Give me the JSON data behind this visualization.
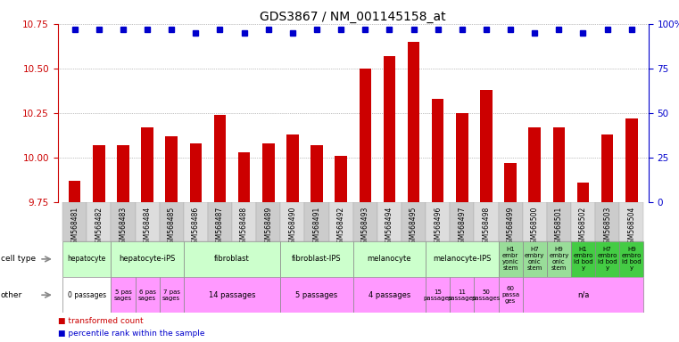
{
  "title": "GDS3867 / NM_001145158_at",
  "samples": [
    "GSM568481",
    "GSM568482",
    "GSM568483",
    "GSM568484",
    "GSM568485",
    "GSM568486",
    "GSM568487",
    "GSM568488",
    "GSM568489",
    "GSM568490",
    "GSM568491",
    "GSM568492",
    "GSM568493",
    "GSM568494",
    "GSM568495",
    "GSM568496",
    "GSM568497",
    "GSM568498",
    "GSM568499",
    "GSM568500",
    "GSM568501",
    "GSM568502",
    "GSM568503",
    "GSM568504"
  ],
  "transformed_count": [
    9.87,
    10.07,
    10.07,
    10.17,
    10.12,
    10.08,
    10.24,
    10.03,
    10.08,
    10.13,
    10.07,
    10.01,
    10.5,
    10.57,
    10.65,
    10.33,
    10.25,
    10.38,
    9.97,
    10.17,
    10.17,
    9.86,
    10.13,
    10.22
  ],
  "percentile": [
    97,
    97,
    97,
    97,
    97,
    95,
    97,
    95,
    97,
    95,
    97,
    97,
    97,
    97,
    97,
    97,
    97,
    97,
    97,
    95,
    97,
    95,
    97,
    97
  ],
  "ylim_left": [
    9.75,
    10.75
  ],
  "yticks_left": [
    9.75,
    10.0,
    10.25,
    10.5,
    10.75
  ],
  "ylim_right": [
    0,
    100
  ],
  "yticks_right": [
    0,
    25,
    50,
    75,
    100
  ],
  "bar_color": "#cc0000",
  "dot_color": "#0000cc",
  "grid_color": "#888888",
  "title_fontsize": 10,
  "bar_width": 0.5,
  "cell_type_groups": [
    {
      "label": "hepatocyte",
      "start": 0,
      "end": 2,
      "color": "#ccffcc"
    },
    {
      "label": "hepatocyte-iPS",
      "start": 2,
      "end": 5,
      "color": "#ccffcc"
    },
    {
      "label": "fibroblast",
      "start": 5,
      "end": 9,
      "color": "#ccffcc"
    },
    {
      "label": "fibroblast-IPS",
      "start": 9,
      "end": 12,
      "color": "#ccffcc"
    },
    {
      "label": "melanocyte",
      "start": 12,
      "end": 15,
      "color": "#ccffcc"
    },
    {
      "label": "melanocyte-IPS",
      "start": 15,
      "end": 18,
      "color": "#ccffcc"
    },
    {
      "label": "H1\nembr\nyonic\nstem",
      "start": 18,
      "end": 19,
      "color": "#99dd99"
    },
    {
      "label": "H7\nembry\nonic\nstem",
      "start": 19,
      "end": 20,
      "color": "#99dd99"
    },
    {
      "label": "H9\nembry\nonic\nstem",
      "start": 20,
      "end": 21,
      "color": "#99dd99"
    },
    {
      "label": "H1\nembro\nid bod\ny",
      "start": 21,
      "end": 22,
      "color": "#44cc44"
    },
    {
      "label": "H7\nembro\nid bod\ny",
      "start": 22,
      "end": 23,
      "color": "#44cc44"
    },
    {
      "label": "H9\nembro\nid bod\ny",
      "start": 23,
      "end": 24,
      "color": "#44cc44"
    }
  ],
  "other_groups": [
    {
      "label": "0 passages",
      "start": 0,
      "end": 2,
      "color": "#ffffff"
    },
    {
      "label": "5 pas\nsages",
      "start": 2,
      "end": 3,
      "color": "#ff99ff"
    },
    {
      "label": "6 pas\nsages",
      "start": 3,
      "end": 4,
      "color": "#ff99ff"
    },
    {
      "label": "7 pas\nsages",
      "start": 4,
      "end": 5,
      "color": "#ff99ff"
    },
    {
      "label": "14 passages",
      "start": 5,
      "end": 9,
      "color": "#ff99ff"
    },
    {
      "label": "5 passages",
      "start": 9,
      "end": 12,
      "color": "#ff99ff"
    },
    {
      "label": "4 passages",
      "start": 12,
      "end": 15,
      "color": "#ff99ff"
    },
    {
      "label": "15\npassages",
      "start": 15,
      "end": 16,
      "color": "#ff99ff"
    },
    {
      "label": "11\npassages",
      "start": 16,
      "end": 17,
      "color": "#ff99ff"
    },
    {
      "label": "50\npassages",
      "start": 17,
      "end": 18,
      "color": "#ff99ff"
    },
    {
      "label": "60\npassa\nges",
      "start": 18,
      "end": 19,
      "color": "#ff99ff"
    },
    {
      "label": "n/a",
      "start": 19,
      "end": 24,
      "color": "#ff99ff"
    }
  ]
}
